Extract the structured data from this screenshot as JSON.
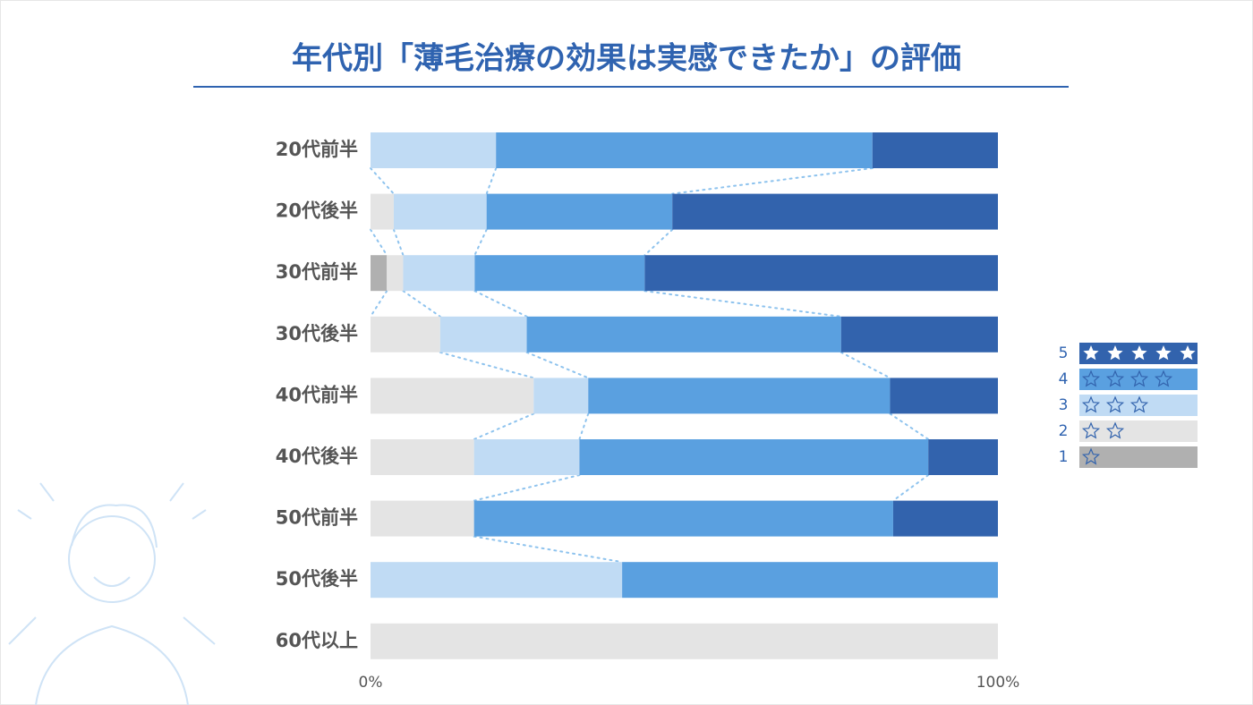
{
  "chart_data": {
    "type": "stacked-bar-horizontal",
    "title": "年代別「薄毛治療の効果は実感できたか」の評価",
    "categories": [
      "20代前半",
      "20代後半",
      "30代前半",
      "30代後半",
      "40代前半",
      "40代後半",
      "50代前半",
      "50代後半",
      "60代以上"
    ],
    "series": [
      {
        "name": "1",
        "color": "#b0b0b0",
        "values": [
          0,
          0,
          2.6,
          0,
          0,
          0,
          0,
          0,
          0
        ]
      },
      {
        "name": "2",
        "color": "#e4e4e4",
        "values": [
          0,
          3.7,
          2.6,
          11.1,
          26.0,
          16.5,
          16.5,
          0,
          100
        ]
      },
      {
        "name": "3",
        "color": "#c0dbf4",
        "values": [
          20.0,
          14.8,
          11.4,
          13.8,
          8.7,
          16.8,
          0,
          40.1,
          0
        ]
      },
      {
        "name": "4",
        "color": "#5aa0e0",
        "values": [
          60.0,
          29.6,
          27.1,
          50.1,
          48.1,
          55.6,
          66.8,
          59.9,
          0
        ]
      },
      {
        "name": "5",
        "color": "#3263ad",
        "values": [
          20.0,
          51.9,
          56.3,
          25.0,
          17.2,
          11.1,
          16.7,
          0,
          0
        ]
      }
    ],
    "xlim": [
      0,
      100
    ],
    "xticks": [
      {
        "value": 0,
        "label": "0%"
      },
      {
        "value": 100,
        "label": "100%"
      }
    ]
  }
}
